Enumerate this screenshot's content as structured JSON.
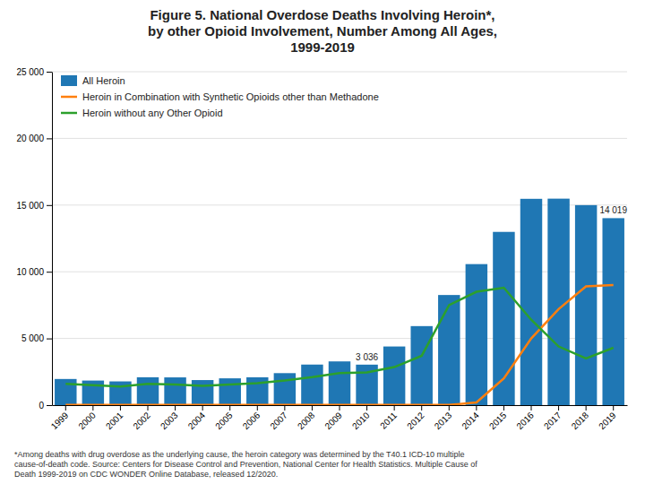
{
  "chart_data": {
    "type": "bar",
    "title": "Figure 5. National Overdose Deaths Involving Heroin*,\nby other Opioid Involvement, Number Among All Ages,\n1999-2019",
    "categories": [
      "1999",
      "2000",
      "2001",
      "2002",
      "2003",
      "2004",
      "2005",
      "2006",
      "2007",
      "2008",
      "2009",
      "2010",
      "2011",
      "2012",
      "2013",
      "2014",
      "2015",
      "2016",
      "2017",
      "2018",
      "2019"
    ],
    "series": [
      {
        "name": "All Heroin",
        "type": "bar",
        "values": [
          1960,
          1842,
          1779,
          2089,
          2080,
          1878,
          2009,
          2088,
          2399,
          3041,
          3278,
          3036,
          4397,
          5925,
          8257,
          10574,
          12989,
          15469,
          15482,
          14996,
          14019
        ],
        "value_labels": [
          null,
          null,
          null,
          null,
          null,
          null,
          null,
          null,
          null,
          null,
          null,
          "3 036",
          null,
          null,
          null,
          null,
          null,
          null,
          null,
          null,
          "14 019"
        ]
      },
      {
        "name": "Heroin in Combination with Synthetic Opioids other than Methadone",
        "type": "line",
        "values": [
          18,
          18,
          18,
          18,
          18,
          18,
          18,
          18,
          18,
          18,
          18,
          18,
          18,
          18,
          18,
          200,
          2000,
          5000,
          7200,
          8900,
          9000
        ]
      },
      {
        "name": "Heroin without any Other Opioid",
        "type": "line",
        "values": [
          1600,
          1500,
          1400,
          1600,
          1550,
          1450,
          1550,
          1650,
          1850,
          2100,
          2400,
          2450,
          2850,
          3700,
          7500,
          8500,
          8800,
          6400,
          4400,
          3500,
          4300
        ]
      }
    ],
    "ylim": [
      0,
      25000
    ],
    "yticks": [
      0,
      {
        "value": 5000,
        "label": "5 000"
      },
      {
        "value": 10000,
        "label": "10 000"
      },
      {
        "value": 15000,
        "label": "15 000"
      },
      {
        "value": 20000,
        "label": "20 000"
      },
      {
        "value": 25000,
        "label": "25 000"
      }
    ],
    "grid": true,
    "legend": "upper left",
    "footnote": "*Among deaths with drug overdose as the underlying cause, the heroin category was determined by the T40.1 ICD-10 multiple\ncause-of-death code. Source: Centers for Disease Control and Prevention, National Center for Health Statistics. Multiple Cause of\nDeath 1999-2019 on CDC WONDER Online Database, released 12/2020."
  }
}
